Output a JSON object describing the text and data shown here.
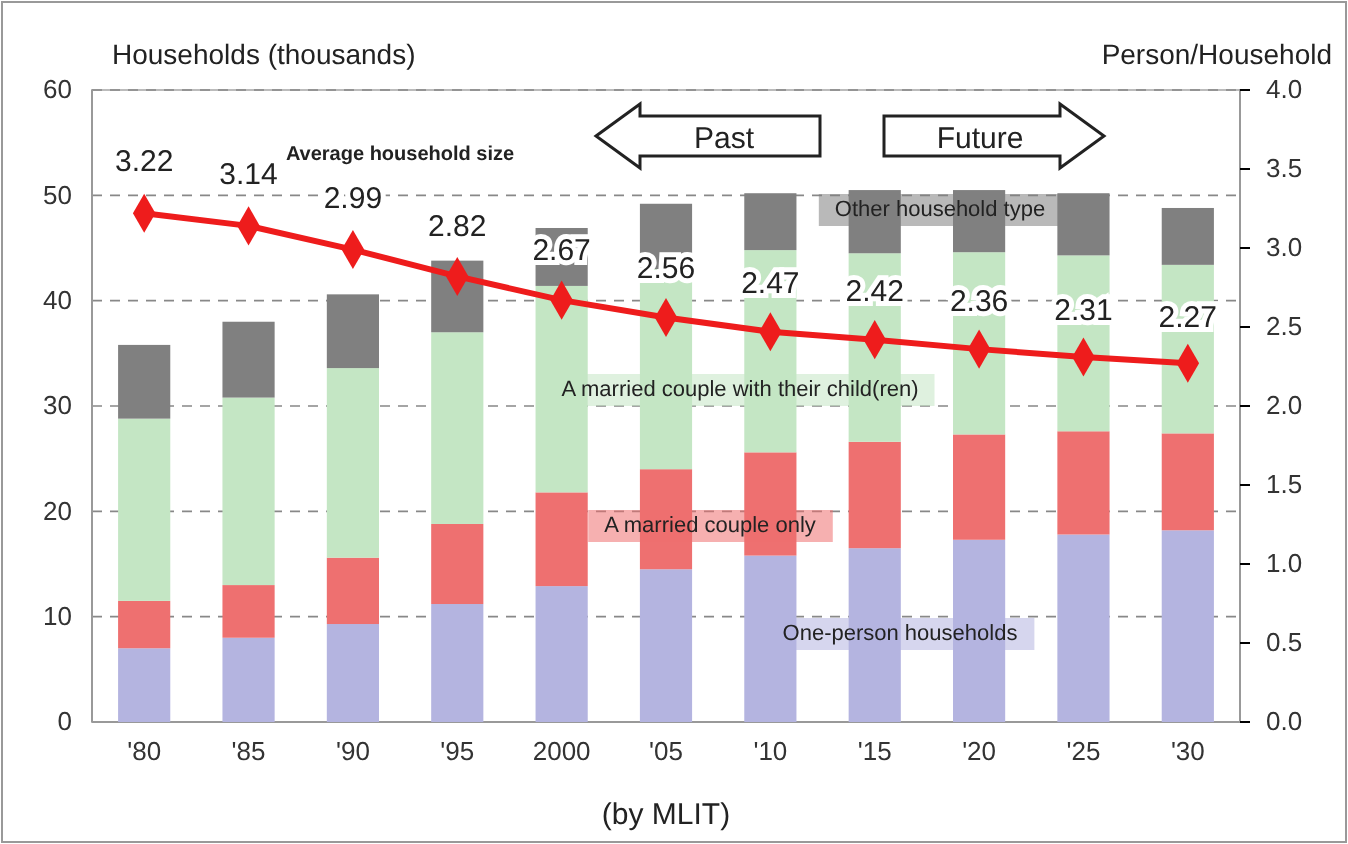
{
  "chart_data": {
    "type": "bar",
    "stacked": true,
    "ylabel": "Households (thousands)",
    "y2label": "Person/Household",
    "categories": [
      "'80",
      "'85",
      "'90",
      "'95",
      "2000",
      "'05",
      "'10",
      "'15",
      "'20",
      "'25",
      "'30"
    ],
    "series": [
      {
        "name": "One-person households",
        "color": "#b4b4e0",
        "values": [
          7,
          8,
          9.3,
          11.2,
          12.9,
          14.5,
          15.8,
          16.5,
          17.3,
          17.8,
          18.2
        ]
      },
      {
        "name": "A married couple only",
        "color": "#ee7070",
        "values": [
          4.5,
          5,
          6.3,
          7.6,
          8.9,
          9.5,
          9.8,
          10.1,
          10.0,
          9.8,
          9.2
        ]
      },
      {
        "name": "A married couple with  their child(ren)",
        "color": "#c4e6c4",
        "values": [
          17.3,
          17.8,
          18,
          18.2,
          19.6,
          19,
          19.2,
          17.9,
          17.3,
          16.7,
          16.0
        ]
      },
      {
        "name": "Other household type",
        "color": "#808080",
        "values": [
          7,
          7.2,
          7,
          6.8,
          5.5,
          6.2,
          5.4,
          6,
          5.9,
          5.9,
          5.4
        ]
      },
      {
        "name": "Average household size",
        "type": "line",
        "axis": "y2",
        "color": "#ee1c1c",
        "marker": "diamond",
        "data_labels": true,
        "values": [
          3.22,
          3.14,
          2.99,
          2.82,
          2.67,
          2.56,
          2.47,
          2.42,
          2.36,
          2.31,
          2.27
        ]
      }
    ],
    "ylim": [
      0,
      60
    ],
    "yticks": [
      0,
      10,
      20,
      30,
      40,
      50,
      60
    ],
    "y2lim": [
      0,
      4
    ],
    "y2ticks": [
      {
        "value": 0,
        "label": "0.0"
      },
      {
        "value": 0.5,
        "label": "0.5"
      },
      {
        "value": 1,
        "label": "1.0"
      },
      {
        "value": 1.5,
        "label": "1.5"
      },
      {
        "value": 2,
        "label": "2.0"
      },
      {
        "value": 2.5,
        "label": "2.5"
      },
      {
        "value": 3,
        "label": "3.0"
      },
      {
        "value": 3.5,
        "label": "3.5"
      },
      {
        "value": 4,
        "label": "4.0"
      }
    ],
    "grid": "y",
    "annotations": [
      "Past",
      "Future",
      "(by MLIT)"
    ]
  }
}
